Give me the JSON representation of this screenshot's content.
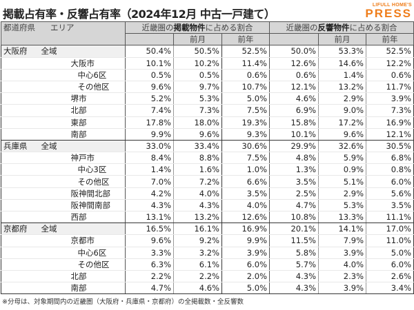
{
  "title": "掲載占有率・反響占有率（2024年12月 中古一戸建て）",
  "logo": {
    "line1": "LIFULL HOME'S",
    "line2": "PRESS",
    "color": "#ef7d1a"
  },
  "header": {
    "pref": "都道府県",
    "area": "エリア",
    "listing_group_pre": "近畿圏の",
    "listing_group_bold": "掲載物件",
    "listing_group_post": "に占める割合",
    "response_group_pre": "近畿圏の",
    "response_group_bold": "反響物件",
    "response_group_post": "に占める割合",
    "prev_month": "前月",
    "prev_year": "前年"
  },
  "rows": [
    {
      "pref": "大阪府",
      "area": "全域",
      "level": 0,
      "v": [
        "50.4%",
        "50.5%",
        "52.5%",
        "50.0%",
        "53.3%",
        "52.5%"
      ]
    },
    {
      "pref": "",
      "area": "大阪市",
      "level": 1,
      "v": [
        "10.1%",
        "10.2%",
        "11.4%",
        "12.6%",
        "14.6%",
        "12.2%"
      ]
    },
    {
      "pref": "",
      "area": "中心6区",
      "level": 2,
      "v": [
        "0.5%",
        "0.5%",
        "0.6%",
        "0.6%",
        "1.4%",
        "0.6%"
      ]
    },
    {
      "pref": "",
      "area": "その他区",
      "level": 2,
      "v": [
        "9.6%",
        "9.7%",
        "10.7%",
        "12.1%",
        "13.2%",
        "11.7%"
      ]
    },
    {
      "pref": "",
      "area": "堺市",
      "level": 1,
      "v": [
        "5.2%",
        "5.3%",
        "5.0%",
        "4.6%",
        "2.9%",
        "3.9%"
      ]
    },
    {
      "pref": "",
      "area": "北部",
      "level": 1,
      "v": [
        "7.4%",
        "7.3%",
        "7.5%",
        "6.9%",
        "9.0%",
        "7.3%"
      ]
    },
    {
      "pref": "",
      "area": "東部",
      "level": 1,
      "v": [
        "17.8%",
        "18.0%",
        "19.3%",
        "15.8%",
        "17.2%",
        "16.9%"
      ]
    },
    {
      "pref": "",
      "area": "南部",
      "level": 1,
      "v": [
        "9.9%",
        "9.6%",
        "9.3%",
        "10.1%",
        "9.6%",
        "12.1%"
      ]
    },
    {
      "pref": "兵庫県",
      "area": "全域",
      "level": 0,
      "v": [
        "33.0%",
        "33.4%",
        "30.6%",
        "29.9%",
        "32.6%",
        "30.5%"
      ]
    },
    {
      "pref": "",
      "area": "神戸市",
      "level": 1,
      "v": [
        "8.4%",
        "8.8%",
        "7.5%",
        "4.8%",
        "5.9%",
        "6.8%"
      ]
    },
    {
      "pref": "",
      "area": "中心3区",
      "level": 2,
      "v": [
        "1.4%",
        "1.6%",
        "1.0%",
        "1.3%",
        "0.9%",
        "0.8%"
      ]
    },
    {
      "pref": "",
      "area": "その他区",
      "level": 2,
      "v": [
        "7.0%",
        "7.2%",
        "6.6%",
        "3.5%",
        "5.1%",
        "6.0%"
      ]
    },
    {
      "pref": "",
      "area": "阪神間北部",
      "level": 1,
      "v": [
        "4.2%",
        "4.0%",
        "3.5%",
        "2.5%",
        "2.9%",
        "5.6%"
      ]
    },
    {
      "pref": "",
      "area": "阪神間南部",
      "level": 1,
      "v": [
        "4.3%",
        "4.3%",
        "4.0%",
        "4.7%",
        "5.3%",
        "3.5%"
      ]
    },
    {
      "pref": "",
      "area": "西部",
      "level": 1,
      "v": [
        "13.1%",
        "13.2%",
        "12.6%",
        "10.8%",
        "13.3%",
        "11.1%"
      ]
    },
    {
      "pref": "京都府",
      "area": "全域",
      "level": 0,
      "v": [
        "16.5%",
        "16.1%",
        "16.9%",
        "20.1%",
        "14.1%",
        "17.0%"
      ]
    },
    {
      "pref": "",
      "area": "京都市",
      "level": 1,
      "v": [
        "9.6%",
        "9.2%",
        "9.9%",
        "11.5%",
        "7.9%",
        "11.0%"
      ]
    },
    {
      "pref": "",
      "area": "中心6区",
      "level": 2,
      "v": [
        "3.3%",
        "3.2%",
        "3.9%",
        "5.8%",
        "3.9%",
        "5.0%"
      ]
    },
    {
      "pref": "",
      "area": "その他区",
      "level": 2,
      "v": [
        "6.3%",
        "6.1%",
        "6.0%",
        "5.7%",
        "4.0%",
        "6.0%"
      ]
    },
    {
      "pref": "",
      "area": "北部",
      "level": 1,
      "v": [
        "2.2%",
        "2.2%",
        "2.0%",
        "4.3%",
        "2.3%",
        "2.6%"
      ]
    },
    {
      "pref": "",
      "area": "南部",
      "level": 1,
      "v": [
        "4.7%",
        "4.6%",
        "5.0%",
        "4.3%",
        "3.9%",
        "3.4%"
      ]
    }
  ],
  "note": "※分母は、対象期間内の近畿圏（大阪府・兵庫県・京都府）の全掲載数・全反響数"
}
